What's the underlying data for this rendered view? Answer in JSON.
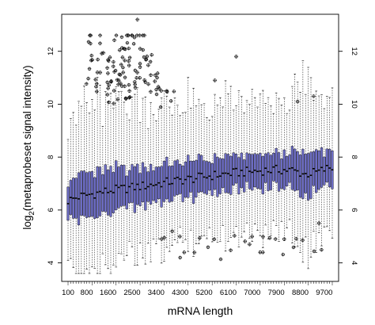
{
  "chart_data": {
    "type": "boxplot",
    "title": "",
    "xlabel": "mRNA length",
    "ylabel_prefix": "log",
    "ylabel_subscript": "2",
    "ylabel_suffix": "(metaprobeset signal intensity)",
    "x_tick_labels": [
      "100",
      "800",
      "1600",
      "2500",
      "3400",
      "4300",
      "5200",
      "6100",
      "7000",
      "7900",
      "8800",
      "9700"
    ],
    "x_tick_values": [
      100,
      800,
      1600,
      2500,
      3400,
      4300,
      5200,
      6100,
      7000,
      7900,
      8800,
      9700
    ],
    "x_bin_width": 100,
    "xlim": [
      100,
      10000
    ],
    "y_tick_labels": [
      "4",
      "6",
      "8",
      "10",
      "12"
    ],
    "y_tick_values": [
      4,
      6,
      8,
      10,
      12
    ],
    "ylim": [
      3.3,
      13.4
    ],
    "right_axis_ticks": true,
    "grid": false,
    "box_color": "#6c6cc4",
    "box_border_color": "#000000",
    "series": [
      {
        "median_curve_x": [
          100,
          500,
          1000,
          1500,
          2000,
          2500,
          3000,
          3500,
          4000,
          4500,
          5000,
          5500,
          6000,
          6500,
          7000,
          7500,
          8000,
          8500,
          9000,
          9500,
          9900
        ],
        "median_curve_y": [
          6.35,
          6.5,
          6.6,
          6.7,
          6.78,
          6.85,
          6.92,
          7.0,
          7.08,
          7.15,
          7.22,
          7.3,
          7.36,
          7.42,
          7.46,
          7.5,
          7.52,
          7.5,
          7.35,
          7.45,
          7.6
        ],
        "iqr_curve_y": [
          1.6,
          1.65,
          1.65,
          1.6,
          1.55,
          1.5,
          1.45,
          1.4,
          1.38,
          1.35,
          1.3,
          1.28,
          1.25,
          1.22,
          1.2,
          1.2,
          1.25,
          1.35,
          1.6,
          1.5,
          1.2
        ]
      }
    ],
    "outlier_examples": [
      {
        "x": 1200,
        "y": 11.2
      },
      {
        "x": 1300,
        "y": 12.3
      },
      {
        "x": 1600,
        "y": 10.6
      },
      {
        "x": 1800,
        "y": 11.6
      },
      {
        "x": 2000,
        "y": 10.9
      },
      {
        "x": 2200,
        "y": 12.1
      },
      {
        "x": 2400,
        "y": 10.5
      },
      {
        "x": 2700,
        "y": 13.2
      },
      {
        "x": 2800,
        "y": 11.4
      },
      {
        "x": 3200,
        "y": 11.1
      },
      {
        "x": 3800,
        "y": 10.5
      },
      {
        "x": 4300,
        "y": 4.2
      },
      {
        "x": 5600,
        "y": 10.9
      },
      {
        "x": 6400,
        "y": 11.8
      },
      {
        "x": 6900,
        "y": 4.7
      },
      {
        "x": 7400,
        "y": 4.4
      },
      {
        "x": 8200,
        "y": 4.9
      },
      {
        "x": 8700,
        "y": 10.1
      },
      {
        "x": 9300,
        "y": 10.3
      },
      {
        "x": 9500,
        "y": 5.5
      }
    ]
  }
}
